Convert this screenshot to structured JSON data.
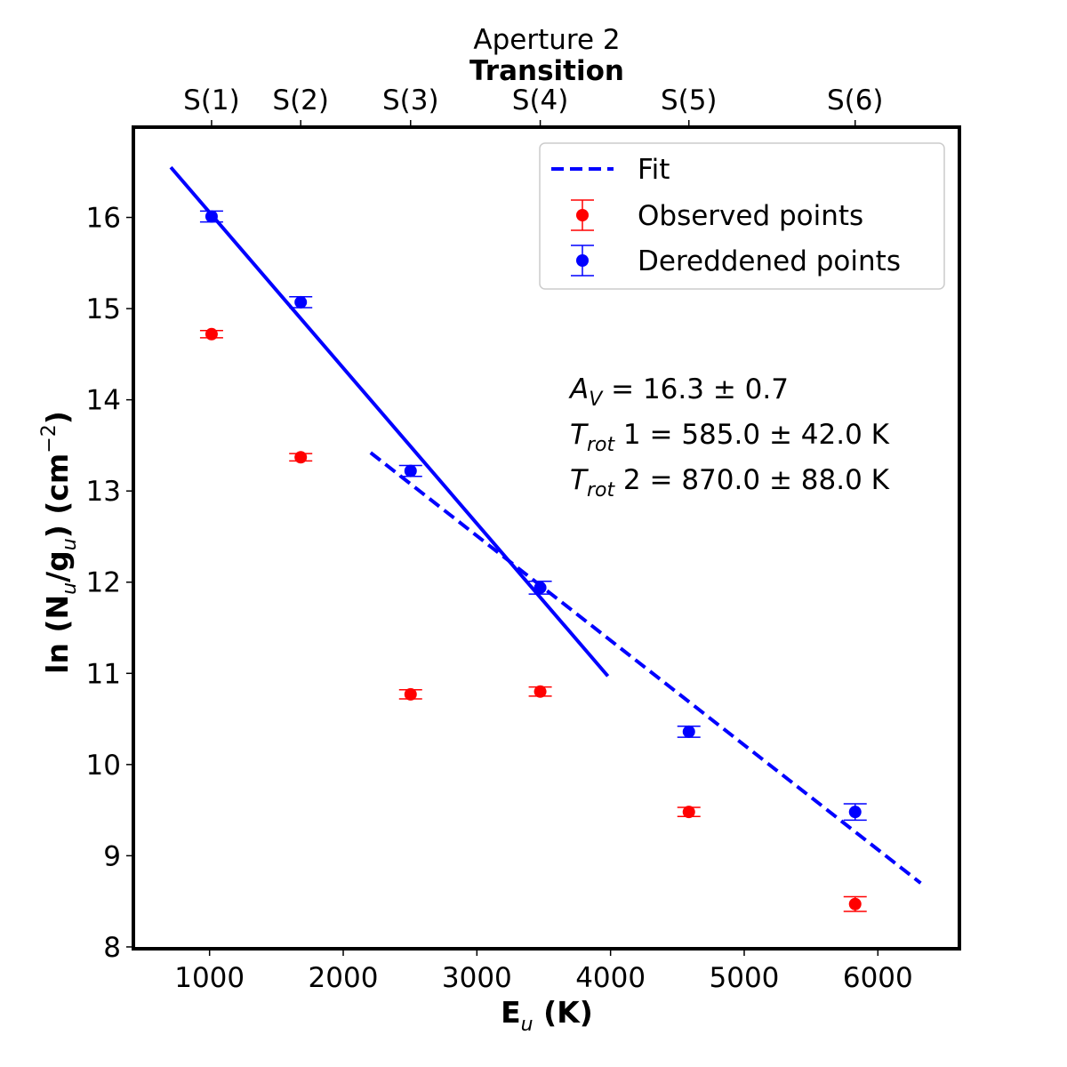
{
  "chart_data": {
    "type": "scatter",
    "title": "Aperture 2",
    "top_axis": {
      "label": "Transition",
      "ticks": [
        {
          "label": "S(1)",
          "x": 1015
        },
        {
          "label": "S(2)",
          "x": 1682
        },
        {
          "label": "S(3)",
          "x": 2504
        },
        {
          "label": "S(4)",
          "x": 3474
        },
        {
          "label": "S(5)",
          "x": 4586
        },
        {
          "label": "S(6)",
          "x": 5830
        }
      ]
    },
    "xlabel": "E",
    "xlabel_sub": "u",
    "xlabel_unit": "(K)",
    "ylabel": "ln (N",
    "ylabel_sub1": "u",
    "ylabel_mid": "/g",
    "ylabel_sub2": "u",
    "ylabel_unit": ") (cm",
    "ylabel_sup": "−2",
    "ylabel_end": ")",
    "xlim": [
      430,
      6610
    ],
    "ylim": [
      7.98,
      16.99
    ],
    "xticks": [
      1000,
      2000,
      3000,
      4000,
      5000,
      6000
    ],
    "yticks": [
      8,
      9,
      10,
      11,
      12,
      13,
      14,
      15,
      16
    ],
    "grid": false,
    "legend_position": "top-right",
    "series": [
      {
        "name": "Observed points",
        "color": "#ff0000",
        "points": [
          {
            "x": 1015,
            "y": 14.72,
            "err": 0.04
          },
          {
            "x": 1682,
            "y": 13.37,
            "err": 0.04
          },
          {
            "x": 2504,
            "y": 10.77,
            "err": 0.05
          },
          {
            "x": 3474,
            "y": 10.8,
            "err": 0.05
          },
          {
            "x": 4586,
            "y": 9.48,
            "err": 0.05
          },
          {
            "x": 5830,
            "y": 8.47,
            "err": 0.08
          }
        ]
      },
      {
        "name": "Dereddened points",
        "color": "#0000ff",
        "points": [
          {
            "x": 1015,
            "y": 16.01,
            "err": 0.06
          },
          {
            "x": 1682,
            "y": 15.07,
            "err": 0.06
          },
          {
            "x": 2504,
            "y": 13.22,
            "err": 0.06
          },
          {
            "x": 3474,
            "y": 11.94,
            "err": 0.07
          },
          {
            "x": 4586,
            "y": 10.36,
            "err": 0.06
          },
          {
            "x": 5830,
            "y": 9.48,
            "err": 0.09
          }
        ]
      }
    ],
    "fit_lines": [
      {
        "name": "Fit (T_rot 1)",
        "style": "solid",
        "color": "#0000ff",
        "x": [
          710,
          3980
        ],
        "y": [
          16.55,
          10.97
        ]
      },
      {
        "name": "Fit (T_rot 2)",
        "style": "dashed",
        "color": "#0000ff",
        "x": [
          2205,
          6320
        ],
        "y": [
          13.42,
          8.7
        ]
      }
    ],
    "legend": [
      {
        "label": "Fit",
        "kind": "dashed-line",
        "color": "#0000ff"
      },
      {
        "label": "Observed points",
        "kind": "marker-errorbar",
        "color": "#ff0000"
      },
      {
        "label": "Dereddened points",
        "kind": "marker-errorbar",
        "color": "#0000ff"
      }
    ],
    "annotations": [
      {
        "sym": "A",
        "sub": "V",
        "rest": " = 16.3 ± 0.7"
      },
      {
        "sym": "T",
        "sub": "rot",
        "rest": " 1 = 585.0 ± 42.0 K"
      },
      {
        "sym": "T",
        "sub": "rot",
        "rest": " 2 = 870.0 ± 88.0 K"
      }
    ]
  }
}
